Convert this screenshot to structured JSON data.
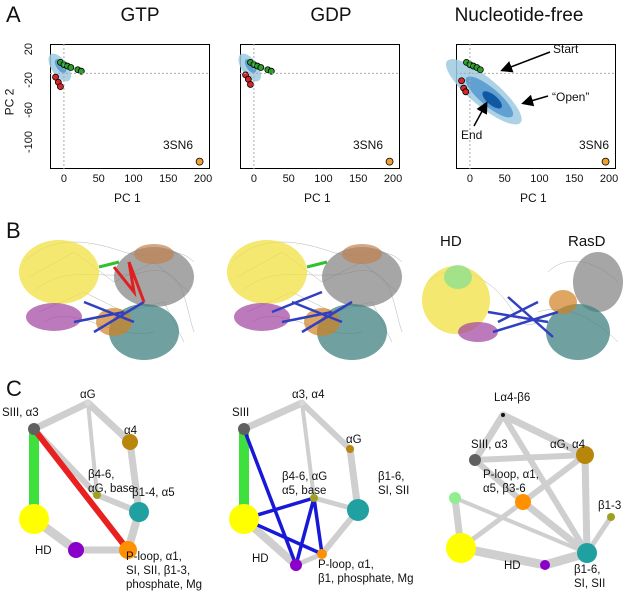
{
  "panels": {
    "a_label": "A",
    "b_label": "B",
    "c_label": "C"
  },
  "scatter": {
    "titles": [
      "GTP",
      "GDP",
      "Nucleotide-free"
    ],
    "xlabel": "PC 1",
    "ylabel": "PC 2",
    "xticks": [
      "0",
      "50",
      "100",
      "150",
      "200"
    ],
    "yticks": [
      "20",
      "-20",
      "-60",
      "-100"
    ],
    "reference_label": "3SN6",
    "annotations": {
      "start": "Start",
      "open": "“Open”",
      "end": "End"
    },
    "colors": {
      "density_light": "#9ecae1",
      "density_dark": "#08519c",
      "start_points": "#2ca02c",
      "end_points": "#d62728",
      "reference": "#f0a030"
    }
  },
  "chart_data": [
    {
      "type": "scatter",
      "title": "GTP",
      "xlabel": "PC 1",
      "ylabel": "PC 2",
      "xlim": [
        -20,
        210
      ],
      "ylim": [
        -130,
        40
      ],
      "series": [
        {
          "name": "start",
          "x": [
            -5,
            0,
            5,
            10,
            20,
            25
          ],
          "y": [
            15,
            12,
            10,
            8,
            5,
            3
          ]
        },
        {
          "name": "end",
          "x": [
            -12,
            -8,
            -5
          ],
          "y": [
            -5,
            -12,
            -18
          ]
        },
        {
          "name": "3SN6",
          "x": [
            195
          ],
          "y": [
            -120
          ]
        }
      ]
    },
    {
      "type": "scatter",
      "title": "GDP",
      "xlabel": "PC 1",
      "ylabel": "PC 2",
      "xlim": [
        -20,
        210
      ],
      "ylim": [
        -130,
        40
      ],
      "series": [
        {
          "name": "start",
          "x": [
            -5,
            0,
            5,
            10,
            20,
            25
          ],
          "y": [
            15,
            12,
            10,
            8,
            5,
            3
          ]
        },
        {
          "name": "end",
          "x": [
            -12,
            -8,
            -5
          ],
          "y": [
            -2,
            -8,
            -15
          ]
        },
        {
          "name": "3SN6",
          "x": [
            195
          ],
          "y": [
            -120
          ]
        }
      ]
    },
    {
      "type": "scatter",
      "title": "Nucleotide-free",
      "xlabel": "PC 1",
      "ylabel": "PC 2",
      "xlim": [
        -20,
        210
      ],
      "ylim": [
        -130,
        40
      ],
      "series": [
        {
          "name": "start",
          "x": [
            -5,
            0,
            5,
            10,
            15
          ],
          "y": [
            15,
            12,
            10,
            8,
            5
          ]
        },
        {
          "name": "end",
          "x": [
            -12,
            -9,
            -6
          ],
          "y": [
            -10,
            -20,
            -25
          ]
        },
        {
          "name": "3SN6",
          "x": [
            195
          ],
          "y": [
            -120
          ]
        }
      ]
    }
  ],
  "networks": {
    "left": {
      "nodes": [
        {
          "id": "SIII",
          "label": "SIII, α3",
          "color": "#606060"
        },
        {
          "id": "aG",
          "label": "αG",
          "color": "#d9d9d9"
        },
        {
          "id": "a4",
          "label": "α4",
          "color": "#b8860b"
        },
        {
          "id": "b46",
          "label": "β4-6,\nαG, base",
          "color": "#a0a020"
        },
        {
          "id": "b14",
          "label": "β1-4, α5",
          "color": "#20a0a0"
        },
        {
          "id": "yellow",
          "label": "",
          "color": "#ffff00"
        },
        {
          "id": "HD",
          "label": "HD",
          "color": "#8a00c8"
        },
        {
          "id": "ploop",
          "label": "P-loop, α1,\nSI, SII, β1-3,\nphosphate, Mg",
          "color": "#ff9000"
        }
      ]
    },
    "middle": {
      "nodes": [
        {
          "id": "SIII",
          "label": "SIII",
          "color": "#606060"
        },
        {
          "id": "a34",
          "label": "α3, α4",
          "color": "#d9d9d9"
        },
        {
          "id": "aG",
          "label": "αG",
          "color": "#b8860b"
        },
        {
          "id": "b46",
          "label": "β4-6, αG\nα5, base",
          "color": "#a0a020"
        },
        {
          "id": "b16",
          "label": "β1-6,\nSI, SII",
          "color": "#20a0a0"
        },
        {
          "id": "yellow",
          "label": "",
          "color": "#ffff00"
        },
        {
          "id": "HD",
          "label": "HD",
          "color": "#8a00c8"
        },
        {
          "id": "ploop",
          "label": "P-loop, α1,\nβ1, phosphate, Mg",
          "color": "#ff9000"
        }
      ]
    },
    "right": {
      "nodes": [
        {
          "id": "La4",
          "label": "Lα4-β6",
          "color": "#111111"
        },
        {
          "id": "SIII",
          "label": "SIII, α3",
          "color": "#606060"
        },
        {
          "id": "aG",
          "label": "αG, α4",
          "color": "#b8860b"
        },
        {
          "id": "ploop",
          "label": "P-loop, α1,\nα5, β3-6",
          "color": "#ff9000"
        },
        {
          "id": "b13",
          "label": "β1-3",
          "color": "#a0a020"
        },
        {
          "id": "green",
          "label": "",
          "color": "#90ee90"
        },
        {
          "id": "yellow",
          "label": "",
          "color": "#ffff00"
        },
        {
          "id": "HD",
          "label": "HD",
          "color": "#8a00c8"
        },
        {
          "id": "b16",
          "label": "β1-6,\nSI, SII",
          "color": "#20a0a0"
        }
      ]
    }
  },
  "structures": {
    "right_labels": {
      "hd": "HD",
      "rasd": "RasD"
    }
  }
}
